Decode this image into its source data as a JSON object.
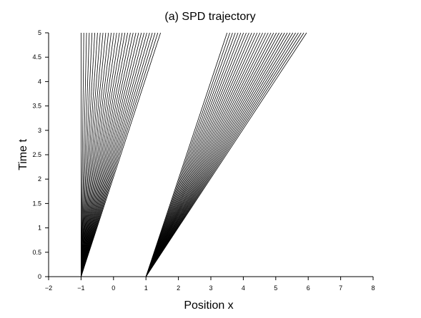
{
  "chart_data": {
    "type": "line",
    "title": "(a) SPD trajectory",
    "xlabel": "Position x",
    "ylabel": "Time t",
    "xlim": [
      -2,
      8
    ],
    "ylim": [
      0,
      5
    ],
    "x_ticks": [
      "-2",
      "-1",
      "0",
      "1",
      "2",
      "3",
      "4",
      "5",
      "6",
      "7",
      "8"
    ],
    "y_ticks": [
      "0",
      "0.5",
      "1",
      "1.5",
      "2",
      "2.5",
      "3",
      "3.5",
      "4",
      "4.5",
      "5"
    ],
    "grid": false,
    "line_color": "#000000",
    "fans": [
      {
        "origin": [
          -1,
          0
        ],
        "end_x_min": -1.0,
        "end_x_max": 1.45,
        "end_t": 5,
        "count": 30
      },
      {
        "origin": [
          1,
          0
        ],
        "end_x_min": 3.5,
        "end_x_max": 5.95,
        "end_t": 5,
        "count": 30
      }
    ]
  }
}
